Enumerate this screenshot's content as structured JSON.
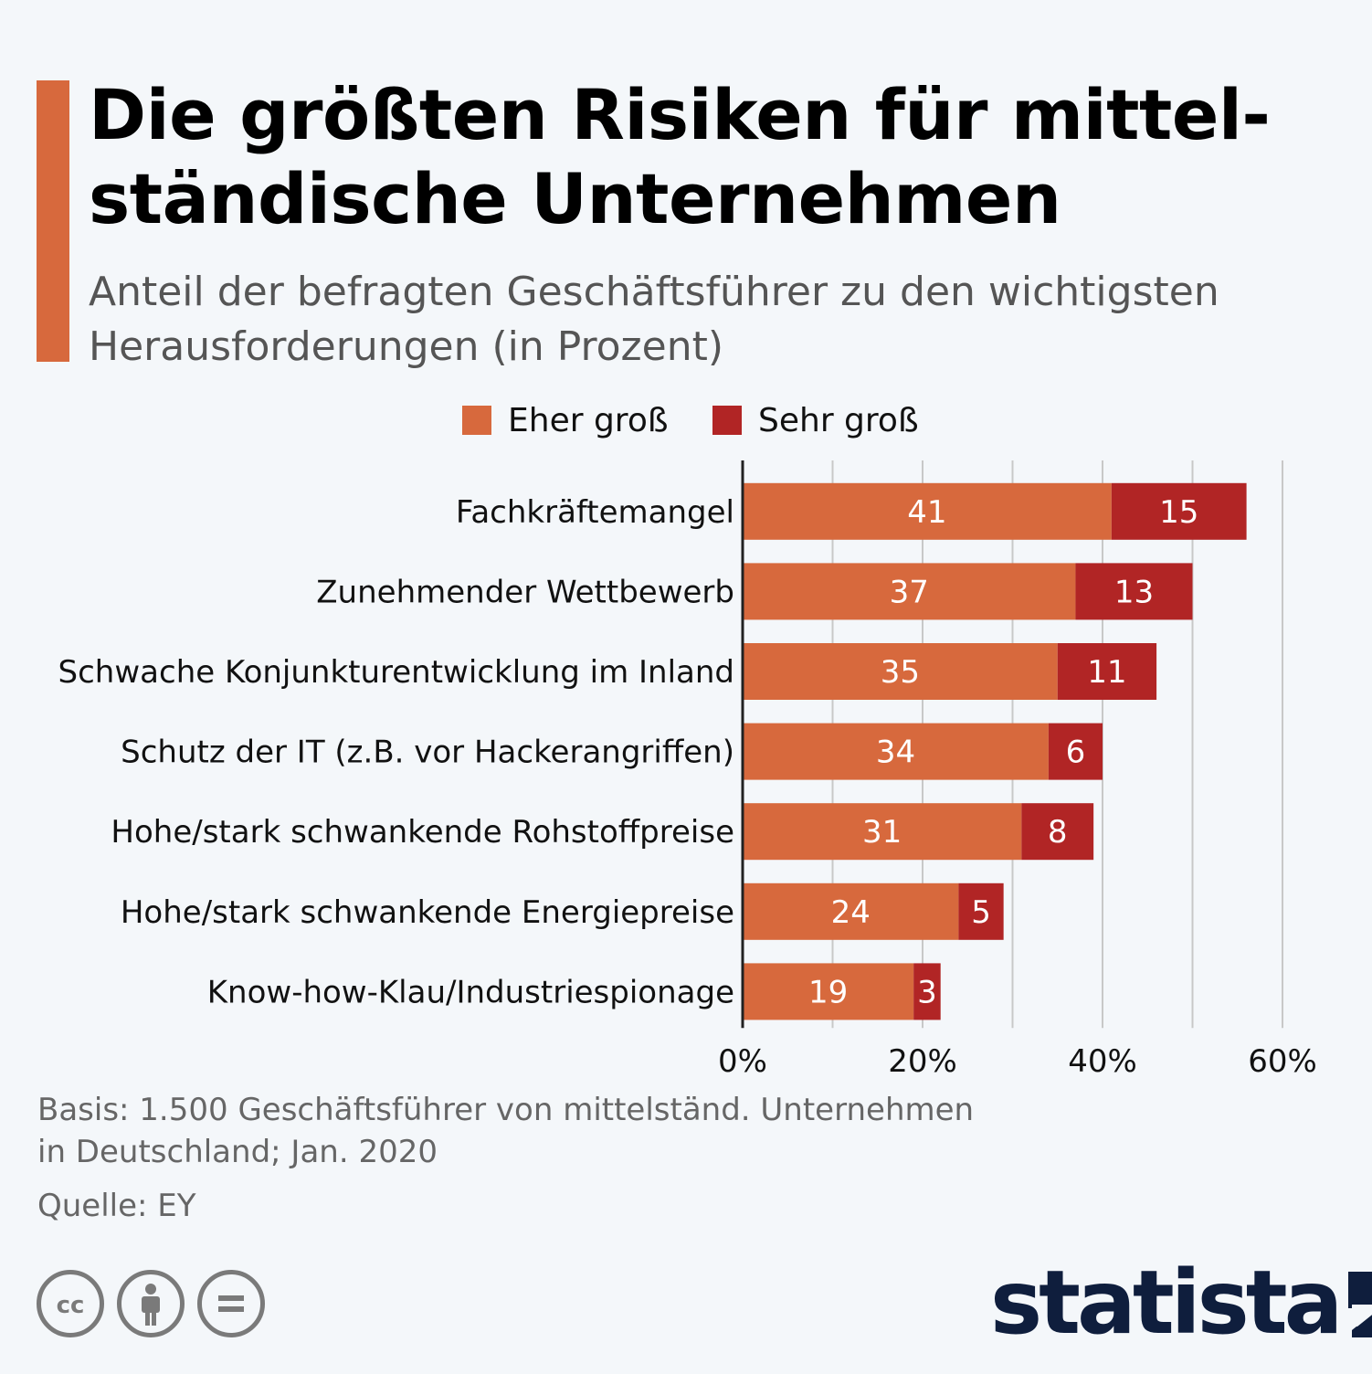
{
  "title_lines": [
    "Die größten Risiken für mittel-",
    "ständische Unternehmen"
  ],
  "subtitle_lines": [
    "Anteil der befragten Geschäftsführer zu den wichtigsten",
    "Herausforderungen (in Prozent)"
  ],
  "colors": {
    "accent": "#d7693d",
    "eher": "#d7693d",
    "sehr": "#b12525",
    "grid": "#c8c8c8",
    "axis": "#222222"
  },
  "chart_data": {
    "type": "bar",
    "orientation": "horizontal",
    "stacked": true,
    "categories": [
      "Fachkräftemangel",
      "Zunehmender Wettbewerb",
      "Schwache Konjunkturentwicklung im Inland",
      "Schutz der IT (z.B. vor Hackerangriffen)",
      "Hohe/stark schwankende Rohstoffpreise",
      "Hohe/stark schwankende Energiepreise",
      "Know-how-Klau/Industriespionage"
    ],
    "series": [
      {
        "name": "Eher groß",
        "values": [
          41,
          37,
          35,
          34,
          31,
          24,
          19
        ]
      },
      {
        "name": "Sehr groß",
        "values": [
          15,
          13,
          11,
          6,
          8,
          5,
          3
        ]
      }
    ],
    "xlim": [
      0,
      60
    ],
    "xticks": [
      0,
      20,
      40,
      60
    ],
    "xtick_labels": [
      "0%",
      "20%",
      "40%",
      "60%"
    ],
    "grid_step": 10,
    "legend": "top-center"
  },
  "footer": {
    "basis_lines": [
      "Basis: 1.500 Geschäftsführer von mittelständ. Unternehmen",
      "in Deutschland; Jan. 2020"
    ],
    "source": "Quelle: EY"
  },
  "license_icons": [
    "cc-icon",
    "attribution-icon",
    "no-derivatives-icon"
  ],
  "logo": {
    "text": "statista"
  }
}
